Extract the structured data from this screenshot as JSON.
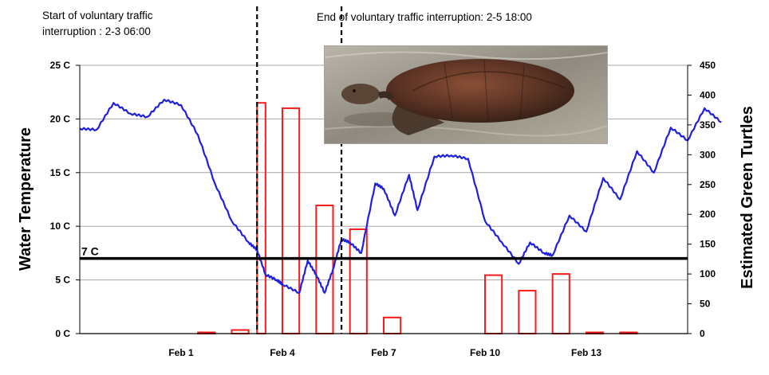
{
  "chart_data": {
    "type": "bar+line",
    "annotations": {
      "start": "Start of voluntary traffic interruption : 2-3 06:00",
      "end": "End of voluntary traffic interruption: 2-5 18:00"
    },
    "threshold_label": "7 C",
    "threshold_value": 7,
    "ylabel_left": "Water Temperature",
    "ylabel_right": "Estimated Green Turtles",
    "y_left": {
      "min": 0,
      "max": 25,
      "ticks": [
        "0 C",
        "5 C",
        "10 C",
        "15 C",
        "20 C",
        "25 C"
      ]
    },
    "y_right": {
      "min": 0,
      "max": 450,
      "ticks": [
        "0",
        "50",
        "100",
        "150",
        "200",
        "250",
        "300",
        "350",
        "400",
        "450"
      ]
    },
    "x_axis": {
      "min": "Jan 29",
      "max": "Feb 16",
      "tick_labels": [
        "Feb 1",
        "Feb 4",
        "Feb 7",
        "Feb 10",
        "Feb 13"
      ]
    },
    "interruption_lines": [
      "Feb 3 06:00",
      "Feb 5 18:00"
    ],
    "colors": {
      "temperature": "#1f1fe0",
      "turtles": "#ff1a1a",
      "threshold": "#000000",
      "grid": "#a6a6a6"
    },
    "series": [
      {
        "name": "Water Temperature",
        "kind": "line",
        "points": [
          [
            "Jan 29",
            19.1
          ],
          [
            "Jan 29 12:00",
            19.0
          ],
          [
            "Jan 30",
            21.5
          ],
          [
            "Jan 30 12:00",
            20.5
          ],
          [
            "Jan 31",
            20.2
          ],
          [
            "Jan 31 12:00",
            21.8
          ],
          [
            "Feb 1",
            21.3
          ],
          [
            "Feb 1 12:00",
            18.5
          ],
          [
            "Feb 2",
            14.0
          ],
          [
            "Feb 2 12:00",
            10.5
          ],
          [
            "Feb 3",
            8.5
          ],
          [
            "Feb 3 06:00",
            7.8
          ],
          [
            "Feb 3 12:00",
            5.5
          ],
          [
            "Feb 3 20:00",
            5.0
          ],
          [
            "Feb 4",
            4.6
          ],
          [
            "Feb 4 12:00",
            3.8
          ],
          [
            "Feb 4 18:00",
            6.8
          ],
          [
            "Feb 5",
            5.5
          ],
          [
            "Feb 5 06:00",
            3.8
          ],
          [
            "Feb 5 12:00",
            6.0
          ],
          [
            "Feb 5 18:00",
            8.8
          ],
          [
            "Feb 6",
            8.5
          ],
          [
            "Feb 6 08:00",
            7.5
          ],
          [
            "Feb 6 18:00",
            14.0
          ],
          [
            "Feb 7",
            13.5
          ],
          [
            "Feb 7 08:00",
            11.0
          ],
          [
            "Feb 7 18:00",
            14.8
          ],
          [
            "Feb 8",
            11.5
          ],
          [
            "Feb 8 12:00",
            16.5
          ],
          [
            "Feb 9",
            16.6
          ],
          [
            "Feb 9 12:00",
            16.3
          ],
          [
            "Feb 10",
            10.5
          ],
          [
            "Feb 10 12:00",
            8.5
          ],
          [
            "Feb 11",
            6.5
          ],
          [
            "Feb 11 08:00",
            8.5
          ],
          [
            "Feb 11 18:00",
            7.5
          ],
          [
            "Feb 12",
            7.3
          ],
          [
            "Feb 12 12:00",
            11.0
          ],
          [
            "Feb 13",
            9.5
          ],
          [
            "Feb 13 12:00",
            14.5
          ],
          [
            "Feb 14",
            12.5
          ],
          [
            "Feb 14 12:00",
            17.0
          ],
          [
            "Feb 15",
            15.0
          ],
          [
            "Feb 15 12:00",
            19.2
          ],
          [
            "Feb 16",
            18.0
          ],
          [
            "Feb 16 12:00",
            21.0
          ],
          [
            "Feb 17",
            19.7
          ]
        ]
      },
      {
        "name": "Estimated Green Turtles",
        "kind": "bar",
        "bars": [
          {
            "start": "Feb 1 12:00",
            "end": "Feb 2",
            "value": 2
          },
          {
            "start": "Feb 2 12:00",
            "end": "Feb 3",
            "value": 6
          },
          {
            "start": "Feb 3 06:00",
            "end": "Feb 3 12:00",
            "value": 387
          },
          {
            "start": "Feb 4",
            "end": "Feb 4 12:00",
            "value": 378
          },
          {
            "start": "Feb 5",
            "end": "Feb 5 12:00",
            "value": 215
          },
          {
            "start": "Feb 6",
            "end": "Feb 6 12:00",
            "value": 175
          },
          {
            "start": "Feb 7",
            "end": "Feb 7 12:00",
            "value": 27
          },
          {
            "start": "Feb 10",
            "end": "Feb 10 12:00",
            "value": 98
          },
          {
            "start": "Feb 11",
            "end": "Feb 11 12:00",
            "value": 72
          },
          {
            "start": "Feb 12",
            "end": "Feb 12 12:00",
            "value": 100
          },
          {
            "start": "Feb 13",
            "end": "Feb 13 12:00",
            "value": 2
          },
          {
            "start": "Feb 14",
            "end": "Feb 14 12:00",
            "value": 2
          }
        ]
      }
    ]
  }
}
